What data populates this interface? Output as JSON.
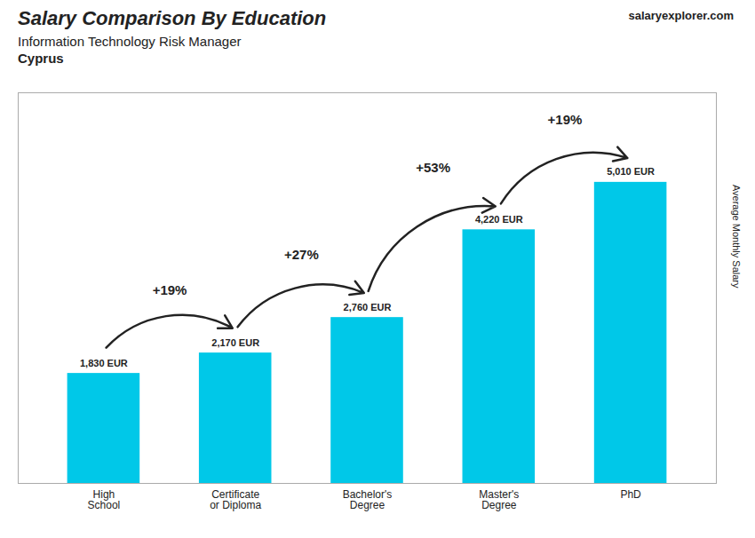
{
  "chart_data": {
    "type": "bar",
    "title": "Salary Comparison By Education",
    "subtitle": "Information Technology Risk Manager",
    "country": "Cyprus",
    "watermark": "salaryexplorer.com",
    "ylabel": "Average Monthly Salary",
    "categories": [
      "High\nSchool",
      "Certificate\nor Diploma",
      "Bachelor's\nDegree",
      "Master's\nDegree",
      "PhD"
    ],
    "values": [
      1830,
      2170,
      2760,
      4220,
      5010
    ],
    "value_labels": [
      "1,830 EUR",
      "2,170 EUR",
      "2,760 EUR",
      "4,220 EUR",
      "5,010 EUR"
    ],
    "data_labels": true,
    "annotations": [
      "+19%",
      "+27%",
      "+53%",
      "+19%"
    ],
    "color": "#00c8e8",
    "ylim": [
      0,
      6500
    ],
    "yticks": [],
    "tick_labels": "x"
  }
}
